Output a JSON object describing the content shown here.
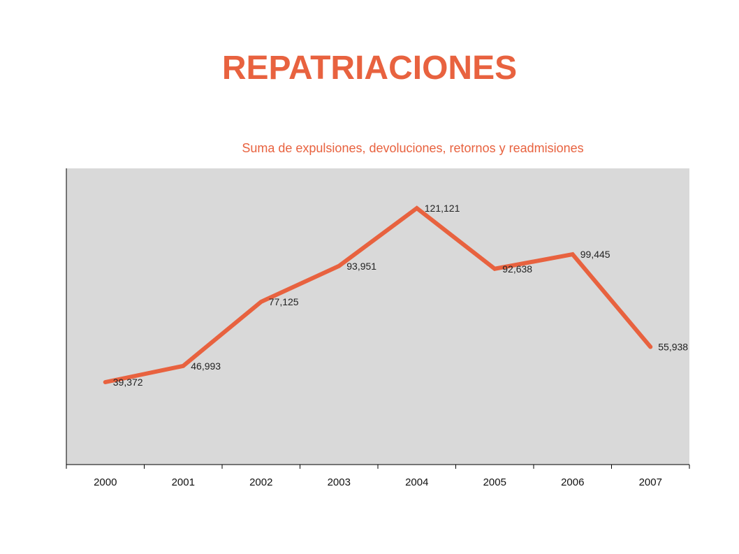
{
  "page": {
    "title": "REPATRIACIONES",
    "subtitle": "Suma de expulsiones, devoluciones, retornos y readmisiones"
  },
  "colors": {
    "accent": "#e8623f",
    "plot_background": "#d9d9d9",
    "axis": "#000000"
  },
  "chart_data": {
    "type": "line",
    "title": "REPATRIACIONES",
    "subtitle": "Suma de expulsiones, devoluciones, retornos y readmisiones",
    "xlabel": "",
    "ylabel": "",
    "categories": [
      "2000",
      "2001",
      "2002",
      "2003",
      "2004",
      "2005",
      "2006",
      "2007"
    ],
    "values": [
      39372,
      46993,
      77125,
      93951,
      121121,
      92638,
      99445,
      55938
    ],
    "data_labels": [
      "39,372",
      "46,993",
      "77,125",
      "93,951",
      "121,121",
      "92,638",
      "99,445",
      "55,938"
    ],
    "grid": false,
    "legend": "none"
  }
}
